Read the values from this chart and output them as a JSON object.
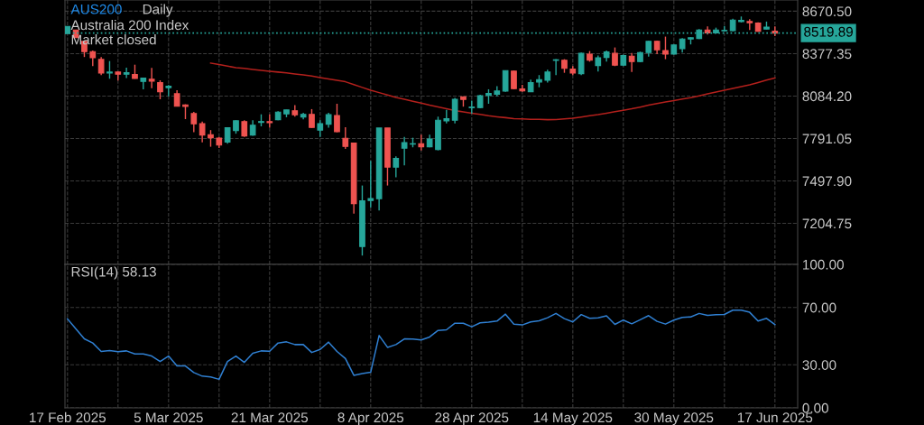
{
  "chart_data": [
    {
      "type": "candlestick",
      "title": "AUS200",
      "subtitle": "Daily",
      "annotations": [
        "Australia 200 Index",
        "Market closed"
      ],
      "ohlc": [
        [
          8516,
          8566,
          8516,
          8566
        ],
        [
          8541,
          8543,
          8487,
          8488
        ],
        [
          8462,
          8462,
          8354,
          8391
        ],
        [
          8391,
          8399,
          8291,
          8349
        ],
        [
          8337,
          8354,
          8229,
          8243
        ],
        [
          8243,
          8326,
          8204,
          8250
        ],
        [
          8250,
          8256,
          8192,
          8235
        ],
        [
          8235,
          8281,
          8208,
          8245
        ],
        [
          8233,
          8301,
          8204,
          8206
        ],
        [
          8185,
          8212,
          8131,
          8208
        ],
        [
          8200,
          8279,
          8139,
          8187
        ],
        [
          8177,
          8193,
          8062,
          8114
        ],
        [
          8142,
          8160,
          8083,
          8152
        ],
        [
          8100,
          8125,
          8014,
          8014
        ],
        [
          8023,
          8027,
          7925,
          8013
        ],
        [
          7963,
          7975,
          7834,
          7892
        ],
        [
          7894,
          7908,
          7765,
          7815
        ],
        [
          7817,
          7849,
          7734,
          7796
        ],
        [
          7794,
          7802,
          7726,
          7746
        ],
        [
          7767,
          7869,
          7755,
          7865
        ],
        [
          7846,
          7917,
          7824,
          7913
        ],
        [
          7908,
          7917,
          7802,
          7809
        ],
        [
          7815,
          7917,
          7809,
          7883
        ],
        [
          7902,
          7958,
          7875,
          7908
        ],
        [
          7908,
          7958,
          7865,
          7900
        ],
        [
          7921,
          7979,
          7917,
          7973
        ],
        [
          7961,
          7989,
          7938,
          7988
        ],
        [
          7983,
          8021,
          7942,
          7955
        ],
        [
          7940,
          7969,
          7923,
          7958
        ],
        [
          7958,
          7994,
          7865,
          7867
        ],
        [
          7849,
          7917,
          7802,
          7894
        ],
        [
          7890,
          7969,
          7865,
          7955
        ],
        [
          7950,
          8031,
          7834,
          7838
        ],
        [
          7792,
          7869,
          7719,
          7736
        ],
        [
          7759,
          7759,
          7272,
          7341
        ],
        [
          7044,
          7466,
          6982,
          7360
        ],
        [
          7362,
          7636,
          7314,
          7376
        ],
        [
          7375,
          7863,
          7293,
          7863
        ],
        [
          7863,
          7863,
          7466,
          7593
        ],
        [
          7593,
          7668,
          7522,
          7653
        ],
        [
          7724,
          7802,
          7605,
          7763
        ],
        [
          7752,
          7796,
          7730,
          7755
        ],
        [
          7755,
          7817,
          7709,
          7734
        ],
        [
          7734,
          7817,
          7730,
          7788
        ],
        [
          7715,
          7942,
          7709,
          7917
        ],
        [
          7913,
          7989,
          7896,
          7927
        ],
        [
          7917,
          8071,
          7896,
          8062
        ],
        [
          8079,
          8079,
          8011,
          8061
        ],
        [
          8004,
          8052,
          7963,
          8008
        ],
        [
          8004,
          8094,
          8000,
          8087
        ],
        [
          8089,
          8131,
          8031,
          8102
        ],
        [
          8096,
          8152,
          8083,
          8119
        ],
        [
          8119,
          8260,
          8114,
          8260
        ],
        [
          8256,
          8260,
          8131,
          8135
        ],
        [
          8133,
          8162,
          8114,
          8120
        ],
        [
          8114,
          8198,
          8114,
          8177
        ],
        [
          8181,
          8229,
          8145,
          8198
        ],
        [
          8193,
          8266,
          8177,
          8250
        ],
        [
          8331,
          8339,
          8229,
          8335
        ],
        [
          8332,
          8339,
          8245,
          8276
        ],
        [
          8270,
          8291,
          8229,
          8243
        ],
        [
          8239,
          8385,
          8229,
          8379
        ],
        [
          8374,
          8395,
          8322,
          8332
        ],
        [
          8295,
          8364,
          8254,
          8349
        ],
        [
          8351,
          8399,
          8322,
          8389
        ],
        [
          8379,
          8420,
          8291,
          8298
        ],
        [
          8298,
          8370,
          8291,
          8364
        ],
        [
          8360,
          8382,
          8250,
          8322
        ],
        [
          8322,
          8391,
          8318,
          8385
        ],
        [
          8385,
          8466,
          8357,
          8462
        ],
        [
          8463,
          8468,
          8374,
          8404
        ],
        [
          8399,
          8495,
          8339,
          8374
        ],
        [
          8374,
          8441,
          8370,
          8437
        ],
        [
          8412,
          8485,
          8385,
          8478
        ],
        [
          8478,
          8491,
          8441,
          8487
        ],
        [
          8482,
          8547,
          8478,
          8541
        ],
        [
          8541,
          8566,
          8510,
          8520
        ],
        [
          8520,
          8557,
          8516,
          8541
        ],
        [
          8535,
          8568,
          8530,
          8538
        ],
        [
          8536,
          8619,
          8532,
          8609
        ],
        [
          8599,
          8634,
          8593,
          8607
        ],
        [
          8599,
          8616,
          8541,
          8591
        ],
        [
          8588,
          8593,
          8528,
          8532
        ],
        [
          8547,
          8599,
          8545,
          8561
        ],
        [
          8532,
          8566,
          8499,
          8519.89
        ]
      ],
      "colors": [
        "#26a69a",
        "#ef5350",
        "#ef5350",
        "#ef5350",
        "#ef5350",
        "#26a69a",
        "#ef5350",
        "#26a69a",
        "#ef5350",
        "#26a69a",
        "#ef5350",
        "#ef5350",
        "#26a69a",
        "#ef5350",
        "#ef5350",
        "#ef5350",
        "#ef5350",
        "#ef5350",
        "#ef5350",
        "#26a69a",
        "#26a69a",
        "#ef5350",
        "#26a69a",
        "#26a69a",
        "#ef5350",
        "#26a69a",
        "#26a69a",
        "#ef5350",
        "#26a69a",
        "#ef5350",
        "#26a69a",
        "#26a69a",
        "#ef5350",
        "#ef5350",
        "#ef5350",
        "#26a69a",
        "#26a69a",
        "#26a69a",
        "#ef5350",
        "#26a69a",
        "#26a69a",
        "#26a69a",
        "#ef5350",
        "#26a69a",
        "#26a69a",
        "#26a69a",
        "#26a69a",
        "#ef5350",
        "#26a69a",
        "#26a69a",
        "#26a69a",
        "#26a69a",
        "#26a69a",
        "#ef5350",
        "#ef5350",
        "#26a69a",
        "#26a69a",
        "#26a69a",
        "#26a69a",
        "#ef5350",
        "#ef5350",
        "#26a69a",
        "#ef5350",
        "#26a69a",
        "#26a69a",
        "#ef5350",
        "#26a69a",
        "#ef5350",
        "#26a69a",
        "#26a69a",
        "#ef5350",
        "#ef5350",
        "#26a69a",
        "#26a69a",
        "#26a69a",
        "#26a69a",
        "#ef5350",
        "#26a69a",
        "#26a69a",
        "#26a69a",
        "#26a69a",
        "#ef5350",
        "#ef5350",
        "#26a69a",
        "#ef5350"
      ],
      "series": [
        {
          "type": "line",
          "color": "#b3201c",
          "values": [
            null,
            null,
            null,
            null,
            null,
            null,
            null,
            null,
            null,
            null,
            null,
            null,
            null,
            null,
            null,
            null,
            null,
            8312,
            8302,
            8291,
            8281,
            8275,
            8268,
            8262,
            8256,
            8250,
            8244,
            8237,
            8231,
            8222,
            8212,
            8202,
            8193,
            8183,
            8164,
            8144,
            8125,
            8108,
            8092,
            8075,
            8062,
            8048,
            8035,
            8021,
            8009,
            7996,
            7984,
            7975,
            7966,
            7957,
            7948,
            7941,
            7935,
            7928,
            7926,
            7924,
            7923,
            7921,
            7922,
            7926,
            7931,
            7939,
            7948,
            7956,
            7966,
            7976,
            7986,
            7996,
            8008,
            8021,
            8033,
            8043,
            8053,
            8063,
            8073,
            8086,
            8099,
            8112,
            8125,
            8137,
            8150,
            8162,
            8178,
            8194,
            8209
          ]
        }
      ],
      "ylim": [
        6921,
        8748
      ],
      "yticks": [
        {
          "value": 7204.75,
          "label": "7204.75"
        },
        {
          "value": 7497.9,
          "label": "7497.90"
        },
        {
          "value": 7791.05,
          "label": "7791.05"
        },
        {
          "value": 8084.2,
          "label": "8084.20"
        },
        {
          "value": 8377.35,
          "label": "8377.35"
        },
        {
          "value": 8670.5,
          "label": "8670.50"
        }
      ],
      "grid": true,
      "tick_labels": "y",
      "ref_lines": [
        {
          "axis": "y",
          "value": 8519.89,
          "label": "8519.89",
          "color": "#26a69a",
          "line_style": "dotted"
        }
      ]
    },
    {
      "type": "line",
      "title": "RSI(14) 58.13",
      "categories": [
        "17 Feb 2025",
        null,
        null,
        null,
        null,
        null,
        null,
        null,
        null,
        null,
        null,
        null,
        "5 Mar 2025",
        null,
        null,
        null,
        null,
        null,
        null,
        null,
        null,
        null,
        null,
        null,
        "21 Mar 2025",
        null,
        null,
        null,
        null,
        null,
        null,
        null,
        null,
        null,
        null,
        null,
        "8 Apr 2025",
        null,
        null,
        null,
        null,
        null,
        null,
        null,
        null,
        null,
        null,
        null,
        "28 Apr 2025",
        null,
        null,
        null,
        null,
        null,
        null,
        null,
        null,
        null,
        null,
        null,
        "14 May 2025",
        null,
        null,
        null,
        null,
        null,
        null,
        null,
        null,
        null,
        null,
        null,
        "30 May 2025",
        null,
        null,
        null,
        null,
        null,
        null,
        null,
        null,
        null,
        null,
        null,
        "17 Jun 2025"
      ],
      "series": [
        {
          "color": "#2f7fd1",
          "values": [
            62.0,
            55.0,
            48.1,
            45.2,
            39.3,
            39.9,
            39.1,
            39.7,
            37.6,
            37.6,
            36.1,
            32.3,
            36.1,
            29.2,
            29.2,
            24.6,
            22.1,
            21.6,
            19.9,
            32.3,
            36.1,
            31.7,
            38.0,
            39.7,
            39.5,
            45.2,
            46.0,
            44.1,
            44.1,
            38.6,
            40.7,
            45.8,
            39.3,
            34.4,
            22.7,
            23.9,
            24.8,
            50.4,
            42.2,
            44.1,
            48.1,
            47.9,
            47.3,
            49.4,
            54.0,
            54.4,
            59.0,
            59.0,
            56.5,
            59.3,
            59.7,
            60.5,
            65.3,
            58.4,
            57.8,
            59.9,
            60.7,
            62.8,
            65.8,
            62.2,
            59.9,
            65.0,
            62.4,
            62.8,
            64.1,
            58.2,
            61.2,
            58.6,
            61.4,
            64.3,
            60.3,
            58.4,
            61.2,
            63.1,
            63.4,
            65.8,
            64.5,
            65.0,
            65.1,
            68.1,
            68.1,
            66.6,
            60.5,
            62.4,
            58.13
          ]
        }
      ],
      "ylim": [
        0,
        100
      ],
      "yticks": [
        {
          "value": 0,
          "label": "0.00"
        },
        {
          "value": 30,
          "label": "30.00"
        },
        {
          "value": 70,
          "label": "70.00"
        },
        {
          "value": 100,
          "label": "100.00"
        }
      ],
      "grid": true
    }
  ]
}
